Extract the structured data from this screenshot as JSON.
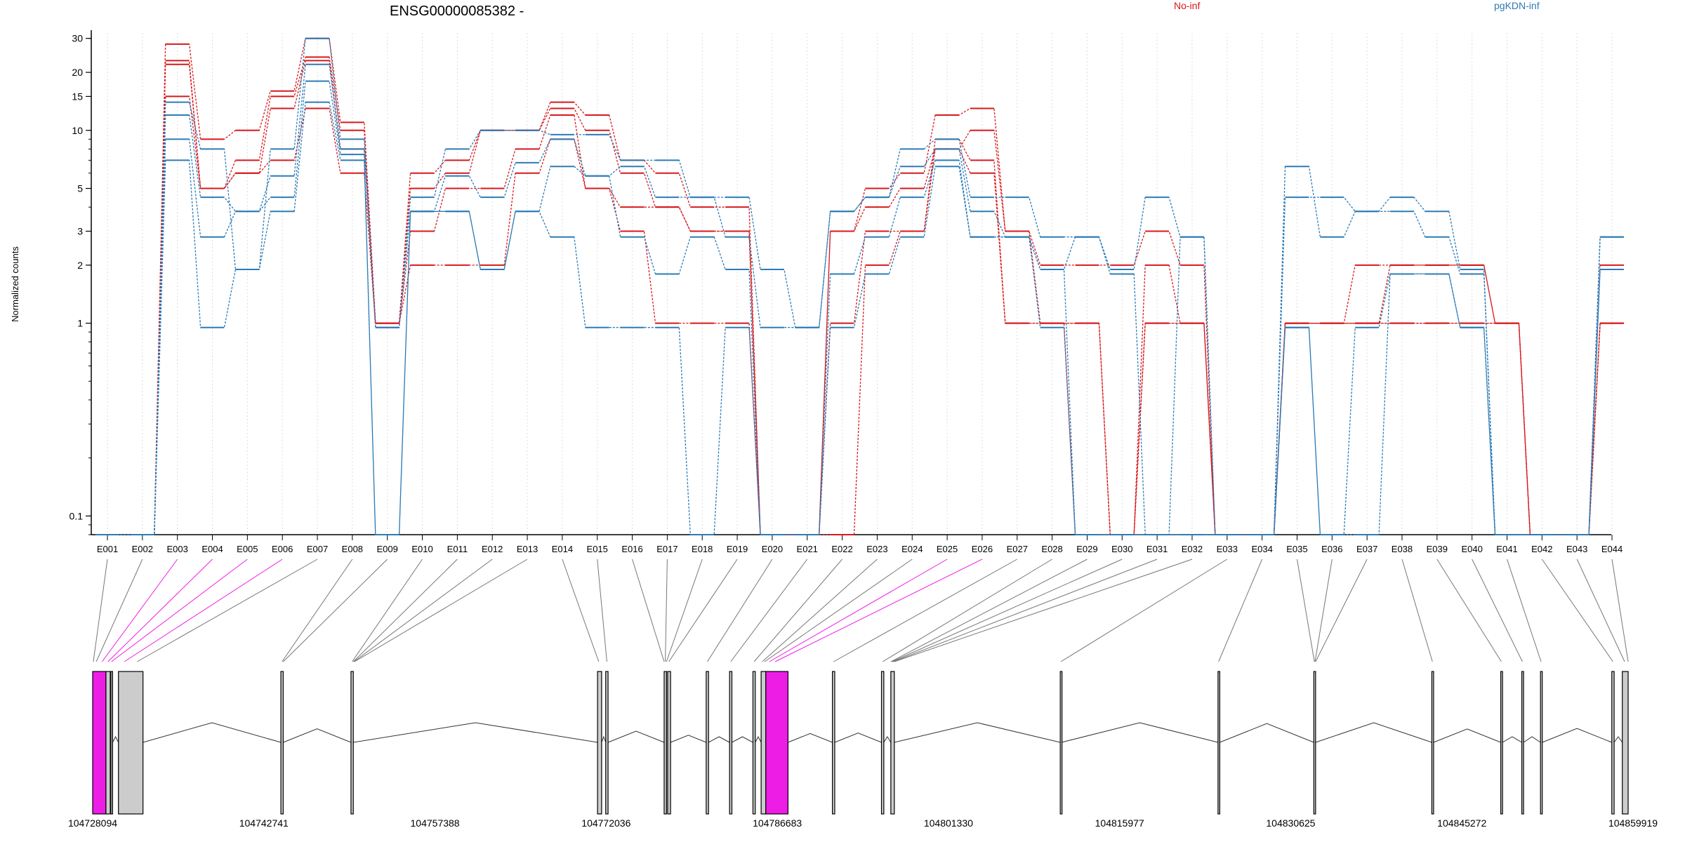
{
  "title": "ENSG00000085382 -",
  "legend": [
    {
      "label": "No-inf",
      "color": "#d7191c"
    },
    {
      "label": "pgKDN-inf",
      "color": "#2c7bb6"
    }
  ],
  "colors": {
    "no_inf": "#d7191c",
    "pgkdn_inf": "#2c7bb6",
    "highlight_exon": "#ee1de6",
    "other_exon": "#cccccc",
    "grid": "#dddddd"
  },
  "chart_data": {
    "type": "line",
    "title": "ENSG00000085382 -",
    "ylabel": "Normalized counts",
    "xlabel": "",
    "yscale": "log",
    "ylim": [
      0.08,
      32
    ],
    "yticks": [
      0.1,
      1,
      2,
      3,
      5,
      10,
      15,
      20,
      30
    ],
    "ytick_labels": [
      "0.1",
      "1",
      "2",
      "3",
      "5",
      "10",
      "15",
      "20",
      "30"
    ],
    "grid": "vertical dotted",
    "legend_position": "top",
    "categories": [
      "E001",
      "E002",
      "E003",
      "E004",
      "E005",
      "E006",
      "E007",
      "E008",
      "E009",
      "E010",
      "E011",
      "E012",
      "E013",
      "E014",
      "E015",
      "E016",
      "E017",
      "E018",
      "E019",
      "E020",
      "E021",
      "E022",
      "E023",
      "E024",
      "E025",
      "E026",
      "E027",
      "E028",
      "E029",
      "E030",
      "E031",
      "E032",
      "E033",
      "E034",
      "E035",
      "E036",
      "E037",
      "E038",
      "E039",
      "E040",
      "E041",
      "E042",
      "E043",
      "E044"
    ],
    "series": [
      {
        "name": "No-inf",
        "values": [
          0.08,
          0.08,
          28,
          9,
          10,
          16,
          30,
          11,
          1,
          6,
          7,
          10,
          10,
          14,
          12,
          7,
          6,
          4,
          4,
          0.08,
          0.08,
          3,
          5,
          6,
          12,
          13,
          3,
          2,
          2,
          2,
          3,
          2,
          0.08,
          0.08,
          1,
          1,
          2,
          2,
          2,
          2,
          1,
          0.08,
          0.08,
          2
        ]
      },
      {
        "name": "No-inf",
        "values": [
          0.08,
          0.08,
          23,
          5,
          7,
          15,
          24,
          10,
          1,
          5,
          6,
          10,
          10,
          13,
          10,
          6,
          4,
          3,
          3,
          0.08,
          0.08,
          3,
          4,
          5,
          8,
          10,
          3,
          1,
          1,
          0.08,
          2,
          1,
          0.08,
          0.08,
          1,
          1,
          1,
          2,
          2,
          2,
          1,
          0.08,
          0.08,
          1
        ]
      },
      {
        "name": "No-inf",
        "values": [
          0.08,
          0.08,
          22,
          5,
          6,
          13,
          23,
          8,
          1,
          3,
          5,
          5,
          8,
          12,
          5,
          4,
          4,
          3,
          3,
          0.08,
          0.08,
          1,
          3,
          3,
          9,
          7,
          1,
          1,
          0.08,
          0.08,
          1,
          1,
          0.08,
          0.08,
          1,
          1,
          1,
          1,
          1,
          1,
          1,
          0.08,
          0.08,
          1
        ]
      },
      {
        "name": "No-inf",
        "values": [
          0.08,
          0.08,
          15,
          5,
          6,
          7,
          13,
          6,
          1,
          2,
          2,
          2,
          6,
          9,
          5,
          3,
          1,
          1,
          1,
          0.08,
          0.08,
          0.08,
          2,
          3,
          8,
          6,
          1,
          1,
          1,
          0.08,
          1,
          1,
          0.08,
          0.08,
          1,
          1,
          1,
          1,
          1,
          1,
          1,
          0.08,
          0.08,
          1
        ]
      },
      {
        "name": "pgKDN-inf",
        "values": [
          0.08,
          0.08,
          14,
          8,
          1.9,
          8,
          30,
          9,
          0.95,
          4.5,
          8,
          10,
          10,
          9.5,
          9.5,
          7,
          7,
          4.5,
          4.5,
          1.9,
          0.95,
          3.8,
          4.5,
          8,
          9,
          4.5,
          4.5,
          2.8,
          2.8,
          1.9,
          4.5,
          2.8,
          0.08,
          0.08,
          6.5,
          2.8,
          3.8,
          4.5,
          3.8,
          1.9,
          0.08,
          0.08,
          0.08,
          2.8
        ]
      },
      {
        "name": "pgKDN-inf",
        "values": [
          0.08,
          0.08,
          12,
          4.5,
          3.8,
          5.8,
          22,
          8,
          0.95,
          3.8,
          5.8,
          4.5,
          6.8,
          9,
          5.8,
          6.5,
          4.5,
          4.5,
          2.8,
          0.95,
          0.95,
          3.8,
          4.5,
          6.5,
          8,
          3.8,
          2.8,
          1.9,
          2.8,
          1.8,
          0.08,
          2.8,
          0.08,
          0.08,
          4.5,
          4.5,
          3.8,
          3.8,
          2.8,
          1.8,
          0.08,
          0.08,
          0.08,
          2.8
        ]
      },
      {
        "name": "pgKDN-inf",
        "values": [
          0.08,
          0.08,
          9,
          2.8,
          3.8,
          4.5,
          18,
          7.5,
          0.08,
          3.8,
          3.8,
          1.9,
          3.8,
          6.5,
          5.8,
          2.8,
          1.8,
          2.8,
          1.9,
          0.08,
          0.08,
          1.8,
          2.8,
          4.5,
          7,
          2.8,
          2.8,
          1.9,
          0.08,
          0.08,
          0.08,
          0.08,
          0.08,
          0.08,
          0.95,
          0.08,
          0.95,
          1.8,
          1.8,
          0.95,
          0.08,
          0.08,
          0.08,
          1.9
        ]
      },
      {
        "name": "pgKDN-inf",
        "values": [
          0.08,
          0.08,
          7,
          0.95,
          1.9,
          3.8,
          14,
          7,
          0.08,
          3.8,
          3.8,
          1.9,
          3.8,
          2.8,
          0.95,
          0.95,
          0.95,
          0.08,
          0.95,
          0.08,
          0.08,
          0.95,
          1.8,
          2.8,
          6.5,
          2.8,
          2.8,
          0.95,
          0.08,
          0.08,
          0.08,
          0.08,
          0.08,
          0.08,
          0.95,
          0.08,
          0.08,
          1.8,
          1.8,
          0.95,
          0.08,
          0.08,
          0.08,
          1.9
        ]
      }
    ],
    "gene_model": {
      "coordinate_labels": [
        "104728094",
        "104742741",
        "104757388",
        "104772036",
        "104786683",
        "104801330",
        "104815977",
        "104830625",
        "104845272",
        "104859919"
      ],
      "x_start": 104728094,
      "x_end": 104859919,
      "exons": [
        {
          "start": 104728094,
          "end": 104729230,
          "color": "highlight"
        },
        {
          "start": 104729230,
          "end": 104729600,
          "color": "other"
        },
        {
          "start": 104729650,
          "end": 104729800,
          "color": "other"
        },
        {
          "start": 104730300,
          "end": 104732400,
          "color": "other"
        },
        {
          "start": 104744200,
          "end": 104744400,
          "color": "other"
        },
        {
          "start": 104750200,
          "end": 104750400,
          "color": "other"
        },
        {
          "start": 104771300,
          "end": 104771650,
          "color": "other"
        },
        {
          "start": 104772000,
          "end": 104772200,
          "color": "other"
        },
        {
          "start": 104777000,
          "end": 104777200,
          "color": "other"
        },
        {
          "start": 104777300,
          "end": 104777550,
          "color": "other"
        },
        {
          "start": 104780600,
          "end": 104780800,
          "color": "other"
        },
        {
          "start": 104782600,
          "end": 104782800,
          "color": "other"
        },
        {
          "start": 104784600,
          "end": 104784800,
          "color": "other"
        },
        {
          "start": 104785300,
          "end": 104785700,
          "color": "other"
        },
        {
          "start": 104785700,
          "end": 104787600,
          "color": "highlight"
        },
        {
          "start": 104791400,
          "end": 104791600,
          "color": "other"
        },
        {
          "start": 104795600,
          "end": 104795800,
          "color": "other"
        },
        {
          "start": 104796400,
          "end": 104796700,
          "color": "other"
        },
        {
          "start": 104810900,
          "end": 104811000,
          "color": "other"
        },
        {
          "start": 104824400,
          "end": 104824550,
          "color": "other"
        },
        {
          "start": 104832600,
          "end": 104832750,
          "color": "other"
        },
        {
          "start": 104842700,
          "end": 104842850,
          "color": "other"
        },
        {
          "start": 104848600,
          "end": 104848750,
          "color": "other"
        },
        {
          "start": 104850400,
          "end": 104850550,
          "color": "other"
        },
        {
          "start": 104852000,
          "end": 104852150,
          "color": "other"
        },
        {
          "start": 104858100,
          "end": 104858300,
          "color": "other"
        },
        {
          "start": 104859000,
          "end": 104859500,
          "color": "other"
        }
      ],
      "bin_positions": [
        104728150,
        104728400,
        104728900,
        104729400,
        104729700,
        104730800,
        104731900,
        104744300,
        104744400,
        104750300,
        104750400,
        104750450,
        104750500,
        104771400,
        104772100,
        104777000,
        104777100,
        104777200,
        104777400,
        104780700,
        104782700,
        104784700,
        104785400,
        104785600,
        104786000,
        104786500,
        104791500,
        104795700,
        104796400,
        104796500,
        104796600,
        104796700,
        104810950,
        104824450,
        104832650,
        104832700,
        104832750,
        104842750,
        104848650,
        104850450,
        104852050,
        104858200,
        104859200,
        104859500
      ]
    }
  }
}
